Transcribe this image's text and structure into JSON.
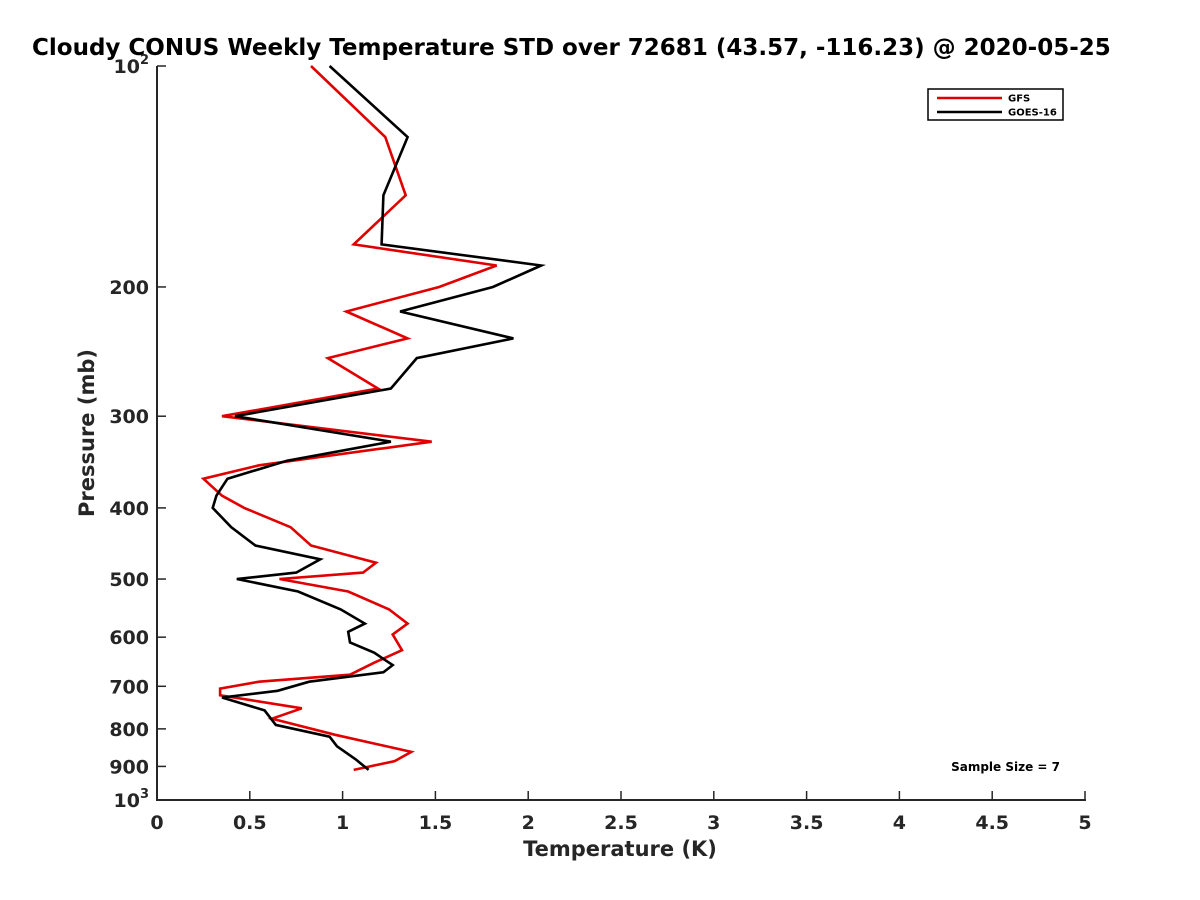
{
  "chart_data": {
    "type": "line",
    "title": "Cloudy CONUS Weekly Temperature STD over 72681 (43.57, -116.23) @ 2020-05-25",
    "xlabel": "Temperature (K)",
    "ylabel": "Pressure (mb)",
    "xlim": [
      0,
      5
    ],
    "ylim": [
      100,
      1000
    ],
    "y_scale": "log",
    "y_reversed": true,
    "grid": false,
    "legend_position": "top-right",
    "x_ticks": [
      {
        "value": 0,
        "label": "0"
      },
      {
        "value": 0.5,
        "label": "0.5"
      },
      {
        "value": 1,
        "label": "1"
      },
      {
        "value": 1.5,
        "label": "1.5"
      },
      {
        "value": 2,
        "label": "2"
      },
      {
        "value": 2.5,
        "label": "2.5"
      },
      {
        "value": 3,
        "label": "3"
      },
      {
        "value": 3.5,
        "label": "3.5"
      },
      {
        "value": 4,
        "label": "4"
      },
      {
        "value": 4.5,
        "label": "4.5"
      },
      {
        "value": 5,
        "label": "5"
      }
    ],
    "y_ticks": [
      {
        "value": 100,
        "label": "10",
        "sup": "2"
      },
      {
        "value": 200,
        "label": "200",
        "sup": ""
      },
      {
        "value": 300,
        "label": "300",
        "sup": ""
      },
      {
        "value": 400,
        "label": "400",
        "sup": ""
      },
      {
        "value": 500,
        "label": "500",
        "sup": ""
      },
      {
        "value": 600,
        "label": "600",
        "sup": ""
      },
      {
        "value": 700,
        "label": "700",
        "sup": ""
      },
      {
        "value": 800,
        "label": "800",
        "sup": ""
      },
      {
        "value": 900,
        "label": "900",
        "sup": ""
      },
      {
        "value": 1000,
        "label": "10",
        "sup": "3"
      }
    ],
    "series": [
      {
        "name": "GFS",
        "color": "#e00000",
        "points": [
          [
            0.83,
            100
          ],
          [
            1.23,
            125
          ],
          [
            1.34,
            150
          ],
          [
            1.06,
            175
          ],
          [
            1.83,
            187
          ],
          [
            1.52,
            200
          ],
          [
            1.02,
            216
          ],
          [
            1.35,
            235
          ],
          [
            0.92,
            250
          ],
          [
            1.19,
            275
          ],
          [
            0.35,
            300
          ],
          [
            1.48,
            325
          ],
          [
            0.55,
            350
          ],
          [
            0.25,
            365
          ],
          [
            0.35,
            385
          ],
          [
            0.47,
            400
          ],
          [
            0.72,
            425
          ],
          [
            0.83,
            450
          ],
          [
            1.18,
            475
          ],
          [
            1.11,
            490
          ],
          [
            0.66,
            500
          ],
          [
            1.03,
            520
          ],
          [
            1.25,
            550
          ],
          [
            1.35,
            575
          ],
          [
            1.27,
            595
          ],
          [
            1.32,
            625
          ],
          [
            1.17,
            650
          ],
          [
            1.04,
            675
          ],
          [
            0.55,
            690
          ],
          [
            0.34,
            705
          ],
          [
            0.34,
            720
          ],
          [
            0.78,
            750
          ],
          [
            0.62,
            775
          ],
          [
            0.96,
            815
          ],
          [
            1.37,
            860
          ],
          [
            1.28,
            885
          ],
          [
            1.06,
            910
          ]
        ]
      },
      {
        "name": "GOES-16",
        "color": "#000000",
        "points": [
          [
            0.93,
            100
          ],
          [
            1.35,
            125
          ],
          [
            1.22,
            150
          ],
          [
            1.21,
            175
          ],
          [
            2.07,
            187
          ],
          [
            1.81,
            200
          ],
          [
            1.31,
            216
          ],
          [
            1.92,
            235
          ],
          [
            1.4,
            250
          ],
          [
            1.26,
            275
          ],
          [
            0.42,
            300
          ],
          [
            1.26,
            325
          ],
          [
            0.7,
            345
          ],
          [
            0.38,
            365
          ],
          [
            0.32,
            385
          ],
          [
            0.3,
            400
          ],
          [
            0.4,
            425
          ],
          [
            0.53,
            450
          ],
          [
            0.88,
            470
          ],
          [
            0.75,
            490
          ],
          [
            0.43,
            500
          ],
          [
            0.76,
            520
          ],
          [
            0.99,
            550
          ],
          [
            1.12,
            575
          ],
          [
            1.03,
            590
          ],
          [
            1.04,
            610
          ],
          [
            1.17,
            630
          ],
          [
            1.27,
            655
          ],
          [
            1.22,
            670
          ],
          [
            0.82,
            690
          ],
          [
            0.65,
            710
          ],
          [
            0.35,
            725
          ],
          [
            0.58,
            755
          ],
          [
            0.64,
            790
          ],
          [
            0.93,
            820
          ],
          [
            0.97,
            845
          ],
          [
            1.07,
            880
          ],
          [
            1.14,
            910
          ]
        ]
      }
    ],
    "annotations": [
      {
        "text": "Sample Size = 7",
        "position": "bottom-right"
      }
    ]
  }
}
